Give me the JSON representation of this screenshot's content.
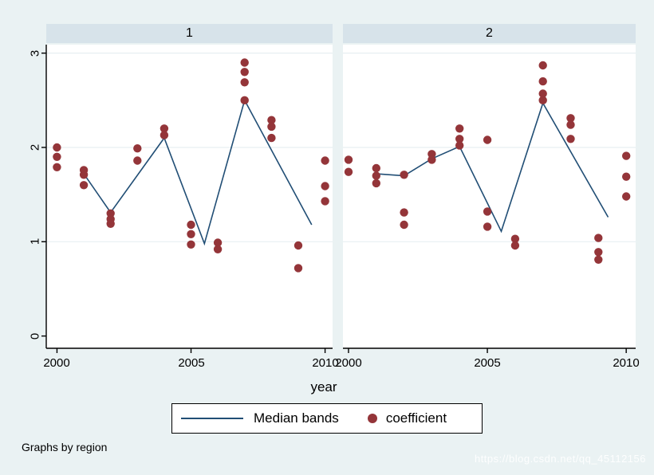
{
  "figure": {
    "xlabel": "year",
    "footer": "Graphs by region",
    "watermark": "https://blog.csdn.net/qq_45112156"
  },
  "legend": {
    "items": [
      {
        "label": "Median bands",
        "type": "line",
        "color": "#214e75"
      },
      {
        "label": "coefficient",
        "type": "marker",
        "color": "#943539"
      }
    ]
  },
  "style": {
    "background": "#eaf2f3",
    "strip_background": "#d7e3ea",
    "plot_background": "#ffffff",
    "grid_color": "#e7eff2",
    "axis_color": "#000000",
    "line_color": "#214e75",
    "marker_color": "#943539"
  },
  "chart_data": [
    {
      "type": "scatter",
      "panel_label": "1",
      "xlabel": "year",
      "x_ticks": [
        2000,
        2005,
        2010
      ],
      "x_tick_labels": [
        "2000",
        "2005",
        "2010"
      ],
      "y_ticks": [
        0,
        1,
        2,
        3
      ],
      "y_tick_labels": [
        "0",
        "1",
        "2",
        "3"
      ],
      "grid_y": [
        1,
        2,
        3
      ],
      "xlim": [
        1999.6,
        2010.28
      ],
      "ylim": [
        -0.13,
        3.09
      ],
      "series": [
        {
          "name": "Median bands",
          "type": "line",
          "points": [
            [
              2001,
              1.72
            ],
            [
              2002,
              1.31
            ],
            [
              2004,
              2.1
            ],
            [
              2005.5,
              0.98
            ],
            [
              2007,
              2.5
            ],
            [
              2009.5,
              1.18
            ]
          ]
        },
        {
          "name": "coefficient",
          "type": "scatter",
          "points": [
            [
              2000,
              2.0
            ],
            [
              2000,
              1.9
            ],
            [
              2000,
              1.79
            ],
            [
              2001,
              1.76
            ],
            [
              2001,
              1.71
            ],
            [
              2001,
              1.6
            ],
            [
              2002,
              1.3
            ],
            [
              2002,
              1.24
            ],
            [
              2002,
              1.19
            ],
            [
              2003,
              1.99
            ],
            [
              2003,
              1.86
            ],
            [
              2004,
              2.2
            ],
            [
              2004,
              2.13
            ],
            [
              2005,
              1.18
            ],
            [
              2005,
              1.08
            ],
            [
              2005,
              0.97
            ],
            [
              2006,
              0.99
            ],
            [
              2006,
              0.92
            ],
            [
              2007,
              2.9
            ],
            [
              2007,
              2.8
            ],
            [
              2007,
              2.69
            ],
            [
              2007,
              2.5
            ],
            [
              2008,
              2.29
            ],
            [
              2008,
              2.22
            ],
            [
              2008,
              2.1
            ],
            [
              2009,
              0.96
            ],
            [
              2009,
              0.72
            ],
            [
              2010,
              1.86
            ],
            [
              2010,
              1.59
            ],
            [
              2010,
              1.43
            ]
          ]
        }
      ]
    },
    {
      "type": "scatter",
      "panel_label": "2",
      "xlabel": "year",
      "x_ticks": [
        2000,
        2005,
        2010
      ],
      "x_tick_labels": [
        "2000",
        "2005",
        "2010"
      ],
      "y_ticks": [
        0,
        1,
        2,
        3
      ],
      "y_tick_labels": [
        "0",
        "1",
        "2",
        "3"
      ],
      "grid_y": [
        1,
        2,
        3
      ],
      "xlim": [
        1999.8,
        2010.34
      ],
      "ylim": [
        -0.13,
        3.09
      ],
      "series": [
        {
          "name": "Median bands",
          "type": "line",
          "points": [
            [
              2001,
              1.72
            ],
            [
              2002,
              1.7
            ],
            [
              2003,
              1.88
            ],
            [
              2004,
              2.01
            ],
            [
              2005.5,
              1.11
            ],
            [
              2007,
              2.47
            ],
            [
              2009.35,
              1.26
            ]
          ]
        },
        {
          "name": "coefficient",
          "type": "scatter",
          "points": [
            [
              2000,
              1.87
            ],
            [
              2000,
              1.74
            ],
            [
              2001,
              1.78
            ],
            [
              2001,
              1.7
            ],
            [
              2001,
              1.62
            ],
            [
              2002,
              1.71
            ],
            [
              2002,
              1.31
            ],
            [
              2002,
              1.18
            ],
            [
              2003,
              1.93
            ],
            [
              2003,
              1.87
            ],
            [
              2004,
              2.2
            ],
            [
              2004,
              2.09
            ],
            [
              2004,
              2.02
            ],
            [
              2005,
              2.08
            ],
            [
              2005,
              1.32
            ],
            [
              2005,
              1.16
            ],
            [
              2006,
              1.03
            ],
            [
              2006,
              0.96
            ],
            [
              2007,
              2.87
            ],
            [
              2007,
              2.7
            ],
            [
              2007,
              2.57
            ],
            [
              2007,
              2.5
            ],
            [
              2008,
              2.31
            ],
            [
              2008,
              2.24
            ],
            [
              2008,
              2.09
            ],
            [
              2009,
              1.04
            ],
            [
              2009,
              0.89
            ],
            [
              2009,
              0.81
            ],
            [
              2010,
              1.91
            ],
            [
              2010,
              1.69
            ],
            [
              2010,
              1.48
            ]
          ]
        }
      ]
    }
  ]
}
